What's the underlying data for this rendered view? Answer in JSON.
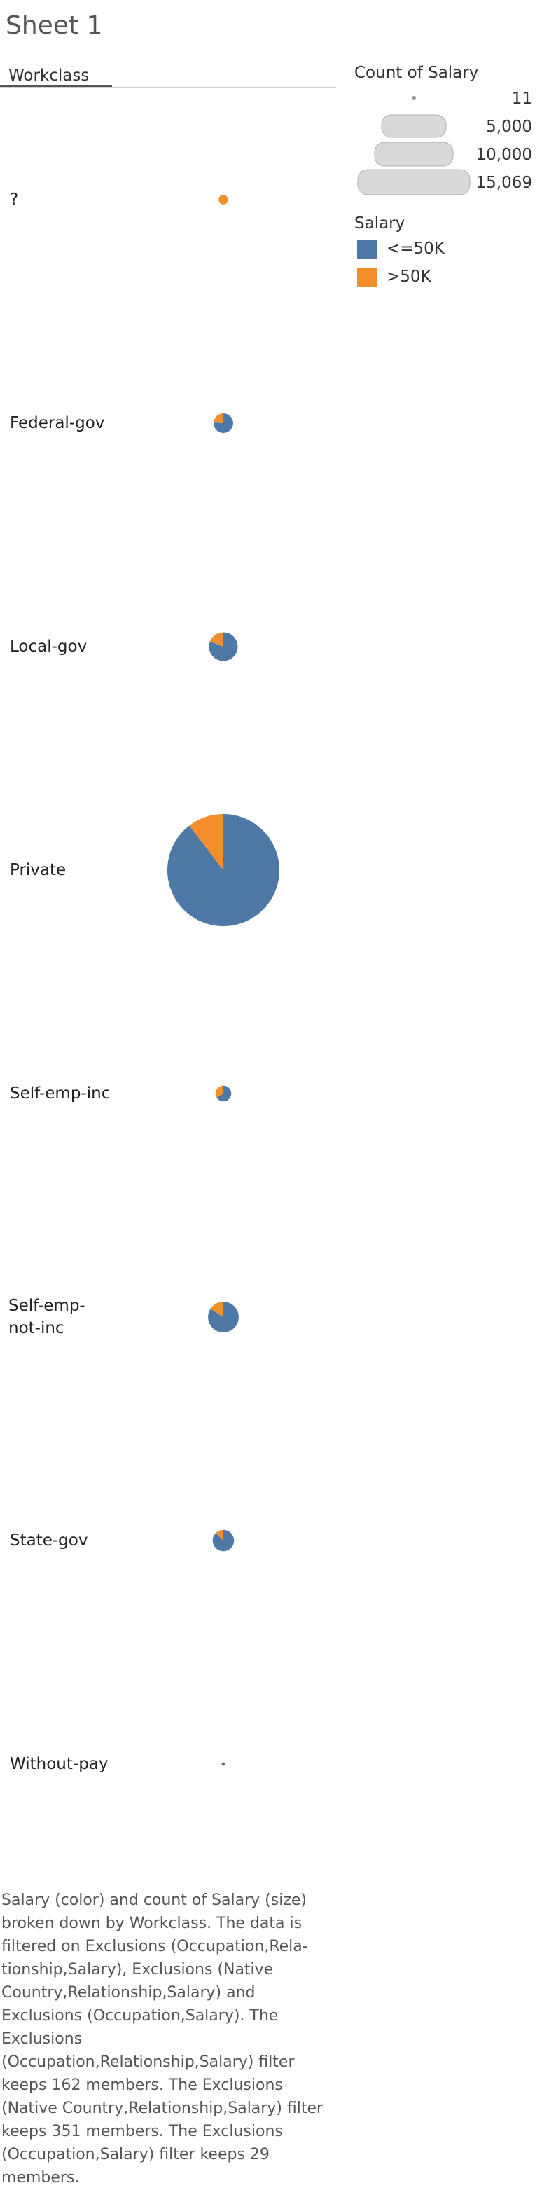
{
  "sheet_title": "Sheet 1",
  "column_header": "Workclass",
  "legend": {
    "size_title": "Count of Salary",
    "size_labels": [
      "11",
      "5,000",
      "10,000",
      "15,069"
    ],
    "color_title": "Salary",
    "color_labels": [
      "<=50K",
      ">50K"
    ]
  },
  "colors": {
    "le50k": "#4e79a7",
    ">50k": "#f28e2b",
    "size_legend_fill": "#d9d9d9"
  },
  "chart_data": {
    "type": "pie",
    "measure": "Count of Salary",
    "size_domain": [
      11,
      15069
    ],
    "categories": [
      "?",
      "Federal-gov",
      "Local-gov",
      "Private",
      "Self-emp-inc",
      "Self-emp-not-inc",
      "State-gov",
      "Without-pay"
    ],
    "category_labels": [
      "?",
      "Federal-gov",
      "Local-gov",
      "Private",
      "Self-emp-inc",
      "Self-emp-\nnot-inc",
      "State-gov",
      "Without-pay"
    ],
    "series": [
      {
        "name": "<=50K",
        "values": [
          0,
          350,
          800,
          13500,
          200,
          950,
          480,
          11
        ]
      },
      {
        "name": ">50K",
        "values": [
          110,
          110,
          190,
          1569,
          100,
          180,
          70,
          0
        ]
      }
    ]
  },
  "caption": "Salary (color) and count of Salary (size) broken down by Workclass. The data is filtered on Exclusions (Occupation,Rela-tionship,Salary), Exclusions (Native Country,Relationship,Salary) and Exclusions (Occupation,Salary). The Exclusions (Occupation,Relationship,Salary) filter keeps 162 members. The Exclusions (Native Country,Relationship,Salary) filter keeps 351 members. The Exclusions (Occupation,Salary) filter keeps 29 members."
}
